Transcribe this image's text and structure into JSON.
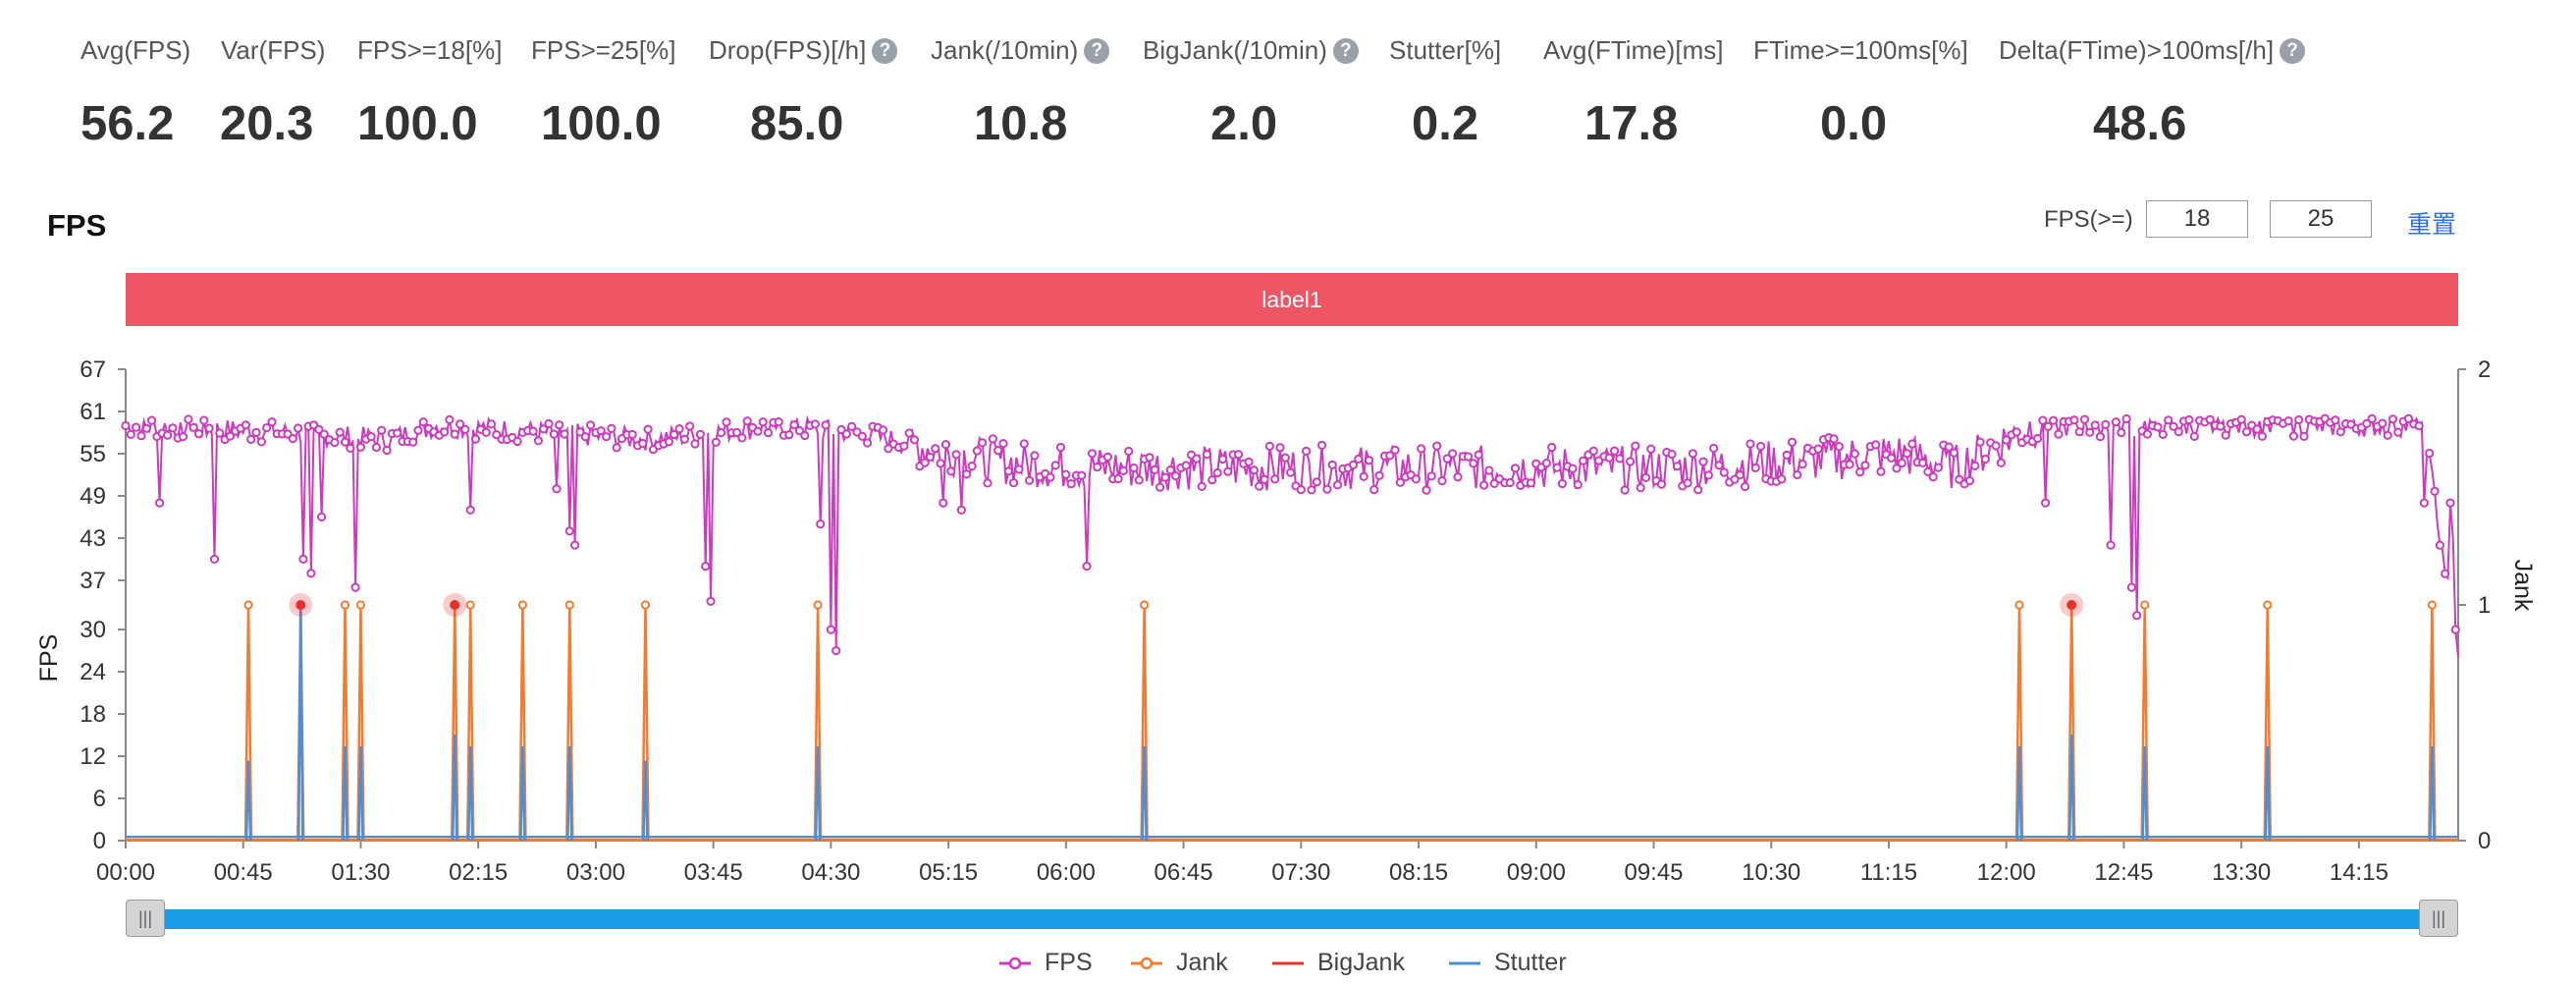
{
  "metrics": [
    {
      "label": "Avg(FPS)",
      "value": "56.2",
      "help": false
    },
    {
      "label": "Var(FPS)",
      "value": "20.3",
      "help": false
    },
    {
      "label": "FPS>=18[%]",
      "value": "100.0",
      "help": false
    },
    {
      "label": "FPS>=25[%]",
      "value": "100.0",
      "help": false
    },
    {
      "label": "Drop(FPS)[/h]",
      "value": "85.0",
      "help": true
    },
    {
      "label": "Jank(/10min)",
      "value": "10.8",
      "help": true
    },
    {
      "label": "BigJank(/10min)",
      "value": "2.0",
      "help": true
    },
    {
      "label": "Stutter[%]",
      "value": "0.2",
      "help": false
    },
    {
      "label": "Avg(FTime)[ms]",
      "value": "17.8",
      "help": false
    },
    {
      "label": "FTime>=100ms[%]",
      "value": "0.0",
      "help": false
    },
    {
      "label": "Delta(FTime)>100ms[/h]",
      "value": "48.6",
      "help": true
    }
  ],
  "help_icon": "?",
  "section_title": "FPS",
  "fps_filter": {
    "label": "FPS(>=)",
    "low": "18",
    "high": "25",
    "reset_label": "重置"
  },
  "band_label": "label1",
  "slider": {
    "handle_glyph": "|||"
  },
  "legend": [
    {
      "name": "FPS",
      "color": "#cc3bbf"
    },
    {
      "name": "Jank",
      "color": "#f47a2f"
    },
    {
      "name": "BigJank",
      "color": "#e8302a"
    },
    {
      "name": "Stutter",
      "color": "#4a8fd9"
    }
  ],
  "chart_data": {
    "type": "line",
    "ylabel": "FPS",
    "y2label": "Jank",
    "yticks": [
      0,
      6,
      12,
      18,
      24,
      30,
      37,
      43,
      49,
      55,
      61,
      67
    ],
    "y2ticks": [
      0,
      1,
      2
    ],
    "ylim": [
      0,
      67
    ],
    "y2lim": [
      0,
      2
    ],
    "xlim": [
      0,
      893
    ],
    "xticks": [
      "00:00",
      "00:45",
      "01:30",
      "02:15",
      "03:00",
      "03:45",
      "04:30",
      "05:15",
      "06:00",
      "06:45",
      "07:30",
      "08:15",
      "09:00",
      "09:45",
      "10:30",
      "11:15",
      "12:00",
      "12:45",
      "13:30",
      "14:15"
    ],
    "x_tick_step_seconds": 45,
    "fps_segments": [
      {
        "x": 0,
        "y": 59
      },
      {
        "x": 60,
        "y": 58
      },
      {
        "x": 100,
        "y": 57
      },
      {
        "x": 120,
        "y": 59
      },
      {
        "x": 160,
        "y": 58
      },
      {
        "x": 200,
        "y": 57
      },
      {
        "x": 250,
        "y": 59
      },
      {
        "x": 280,
        "y": 58
      },
      {
        "x": 330,
        "y": 54
      },
      {
        "x": 360,
        "y": 53
      },
      {
        "x": 400,
        "y": 53
      },
      {
        "x": 440,
        "y": 53
      },
      {
        "x": 480,
        "y": 53
      },
      {
        "x": 520,
        "y": 53
      },
      {
        "x": 560,
        "y": 53
      },
      {
        "x": 600,
        "y": 53
      },
      {
        "x": 640,
        "y": 54
      },
      {
        "x": 680,
        "y": 55
      },
      {
        "x": 700,
        "y": 53
      },
      {
        "x": 730,
        "y": 59
      },
      {
        "x": 780,
        "y": 59
      },
      {
        "x": 800,
        "y": 59
      },
      {
        "x": 840,
        "y": 59
      },
      {
        "x": 880,
        "y": 59
      },
      {
        "x": 893,
        "y": 26
      }
    ],
    "fps_dips": [
      {
        "x": 13,
        "y": 48
      },
      {
        "x": 34,
        "y": 40
      },
      {
        "x": 68,
        "y": 40
      },
      {
        "x": 71,
        "y": 38
      },
      {
        "x": 75,
        "y": 46
      },
      {
        "x": 88,
        "y": 36
      },
      {
        "x": 132,
        "y": 47
      },
      {
        "x": 165,
        "y": 50
      },
      {
        "x": 170,
        "y": 44
      },
      {
        "x": 172,
        "y": 42
      },
      {
        "x": 222,
        "y": 39
      },
      {
        "x": 224,
        "y": 34
      },
      {
        "x": 266,
        "y": 45
      },
      {
        "x": 270,
        "y": 30
      },
      {
        "x": 272,
        "y": 27
      },
      {
        "x": 313,
        "y": 48
      },
      {
        "x": 320,
        "y": 47
      },
      {
        "x": 368,
        "y": 39
      },
      {
        "x": 735,
        "y": 48
      },
      {
        "x": 760,
        "y": 42
      },
      {
        "x": 768,
        "y": 36
      },
      {
        "x": 770,
        "y": 32
      },
      {
        "x": 880,
        "y": 48
      },
      {
        "x": 886,
        "y": 42
      },
      {
        "x": 890,
        "y": 30
      }
    ],
    "jank_x": [
      47,
      67,
      84,
      90,
      126,
      132,
      152,
      170,
      199,
      265,
      390,
      725,
      745,
      773,
      820,
      883
    ],
    "bigjank_x": [
      67,
      126,
      745
    ],
    "stutter": [
      {
        "x": 47,
        "v": 0.34
      },
      {
        "x": 67,
        "v": 1.0
      },
      {
        "x": 84,
        "v": 0.4
      },
      {
        "x": 90,
        "v": 0.4
      },
      {
        "x": 126,
        "v": 0.45
      },
      {
        "x": 132,
        "v": 0.4
      },
      {
        "x": 152,
        "v": 0.4
      },
      {
        "x": 170,
        "v": 0.4
      },
      {
        "x": 199,
        "v": 0.34
      },
      {
        "x": 265,
        "v": 0.4
      },
      {
        "x": 390,
        "v": 0.4
      },
      {
        "x": 725,
        "v": 0.4
      },
      {
        "x": 745,
        "v": 0.45
      },
      {
        "x": 773,
        "v": 0.4
      },
      {
        "x": 820,
        "v": 0.4
      },
      {
        "x": 883,
        "v": 0.4
      }
    ]
  }
}
